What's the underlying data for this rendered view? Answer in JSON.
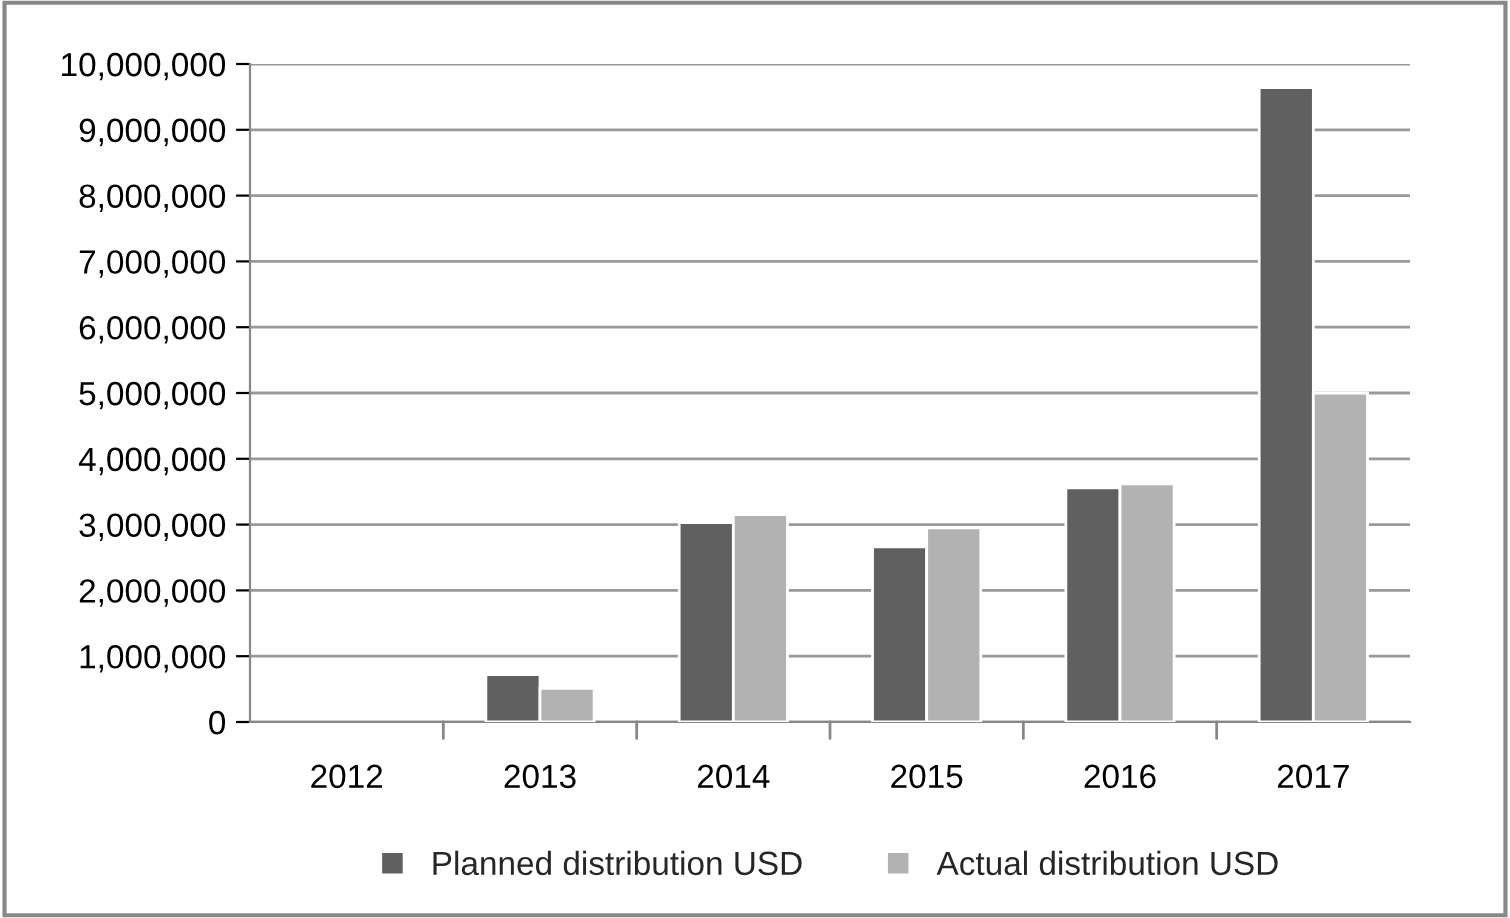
{
  "chart_data": {
    "type": "bar",
    "categories": [
      "2012",
      "2013",
      "2014",
      "2015",
      "2016",
      "2017"
    ],
    "series": [
      {
        "name": "Planned distribution USD",
        "color": "#606060",
        "values": [
          null,
          720000,
          3030000,
          2660000,
          3560000,
          9640000
        ]
      },
      {
        "name": "Actual distribution USD",
        "color": "#b2b2b2",
        "values": [
          null,
          510000,
          3150000,
          2950000,
          3620000,
          5000000
        ]
      }
    ],
    "ylim": [
      0,
      10000000
    ],
    "yticks": [
      {
        "value": 0,
        "label": "0"
      },
      {
        "value": 1000000,
        "label": "1,000,000"
      },
      {
        "value": 2000000,
        "label": "2,000,000"
      },
      {
        "value": 3000000,
        "label": "3,000,000"
      },
      {
        "value": 4000000,
        "label": "4,000,000"
      },
      {
        "value": 5000000,
        "label": "5,000,000"
      },
      {
        "value": 6000000,
        "label": "6,000,000"
      },
      {
        "value": 7000000,
        "label": "7,000,000"
      },
      {
        "value": 8000000,
        "label": "8,000,000"
      },
      {
        "value": 9000000,
        "label": "9,000,000"
      },
      {
        "value": 10000000,
        "label": "10,000,000"
      }
    ],
    "grid": "y",
    "legend": "bottom"
  }
}
